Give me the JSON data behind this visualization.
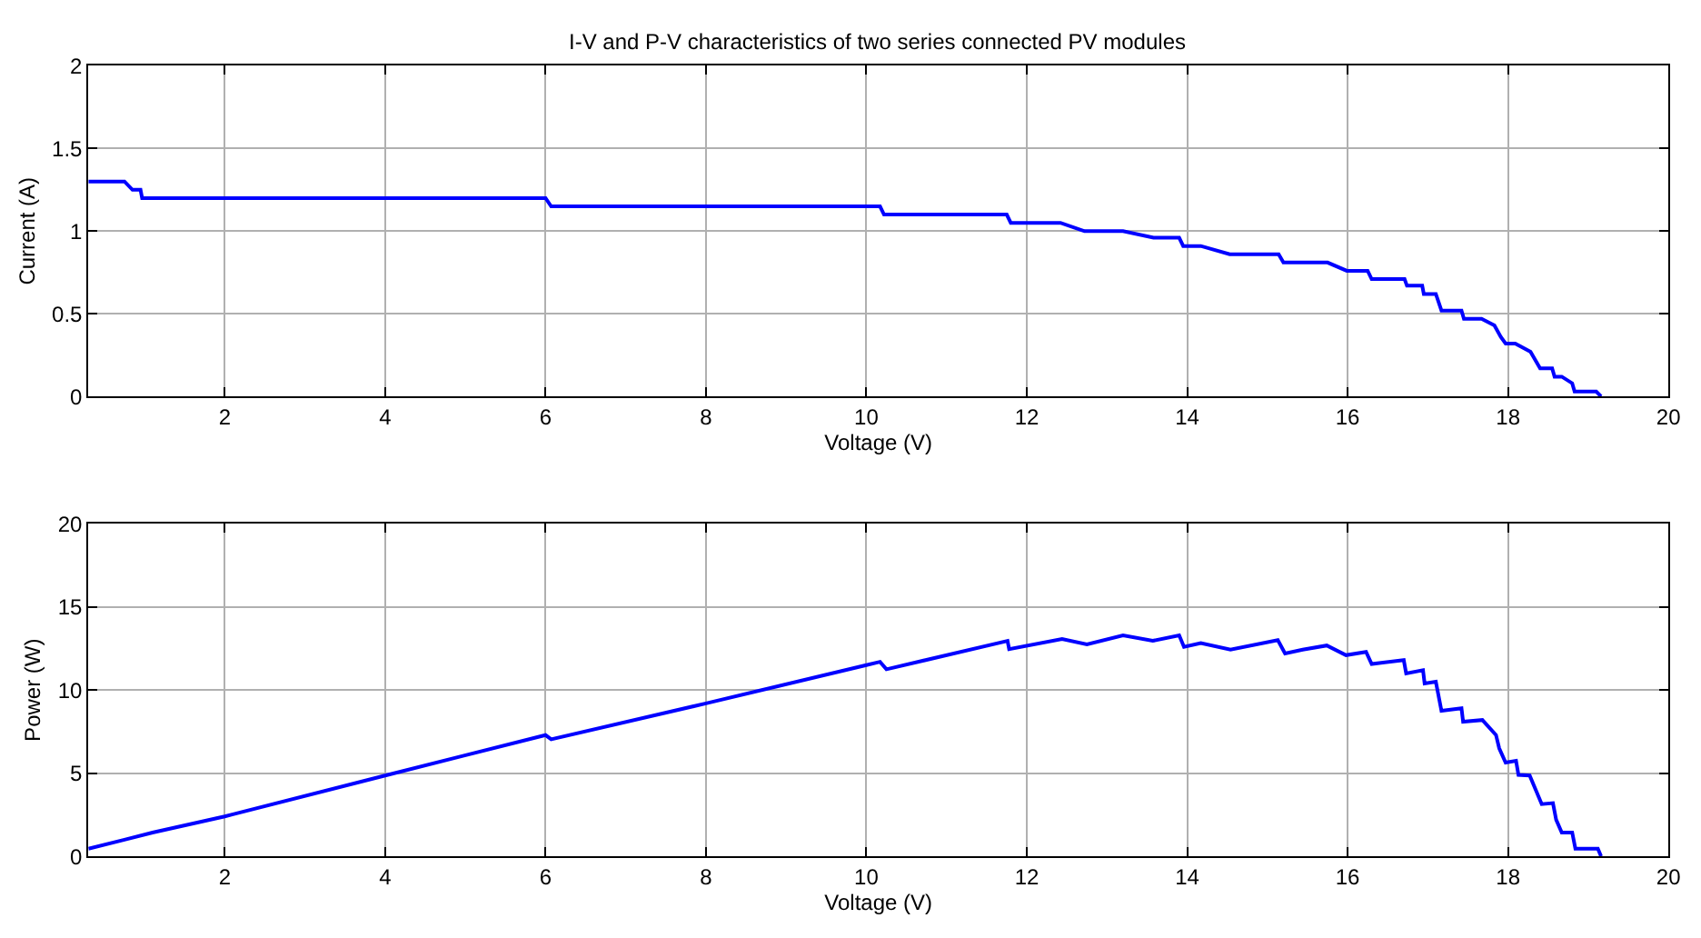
{
  "chart_data": [
    {
      "type": "line",
      "title": "I-V and P-V characteristics of two series connected PV modules",
      "xlabel": "Voltage (V)",
      "ylabel": "Current (A)",
      "xlim": [
        0.3,
        20
      ],
      "xticks": [
        2,
        4,
        6,
        8,
        10,
        12,
        14,
        16,
        18,
        20
      ],
      "ylim": [
        0,
        2
      ],
      "yticks": [
        0,
        0.5,
        1,
        1.5,
        2
      ],
      "grid": true,
      "series": [
        {
          "color": "#0000ff",
          "x": [
            0.3,
            0.75,
            0.85,
            0.95,
            0.97,
            6.0,
            6.07,
            10.17,
            10.22,
            11.75,
            11.8,
            12.42,
            12.72,
            13.2,
            13.58,
            13.9,
            13.95,
            14.17,
            14.53,
            15.14,
            15.2,
            15.75,
            15.99,
            16.25,
            16.3,
            16.71,
            16.74,
            16.93,
            16.95,
            17.1,
            17.17,
            17.42,
            17.45,
            17.67,
            17.83,
            17.91,
            17.97,
            18.09,
            18.28,
            18.4,
            18.55,
            18.58,
            18.67,
            18.8,
            18.83,
            19.1,
            19.16
          ],
          "values": [
            1.3,
            1.3,
            1.25,
            1.25,
            1.2,
            1.2,
            1.15,
            1.15,
            1.1,
            1.1,
            1.05,
            1.05,
            1.0,
            1.0,
            0.96,
            0.96,
            0.91,
            0.91,
            0.86,
            0.86,
            0.81,
            0.81,
            0.76,
            0.76,
            0.71,
            0.71,
            0.67,
            0.67,
            0.62,
            0.62,
            0.52,
            0.52,
            0.47,
            0.47,
            0.43,
            0.36,
            0.32,
            0.32,
            0.27,
            0.17,
            0.17,
            0.12,
            0.12,
            0.08,
            0.03,
            0.03,
            0.0
          ]
        }
      ]
    },
    {
      "type": "line",
      "xlabel": "Voltage (V)",
      "ylabel": "Power (W)",
      "xlim": [
        0.3,
        20
      ],
      "xticks": [
        2,
        4,
        6,
        8,
        10,
        12,
        14,
        16,
        18,
        20
      ],
      "ylim": [
        0,
        20
      ],
      "yticks": [
        0,
        5,
        10,
        15,
        20
      ],
      "grid": true,
      "series": [
        {
          "color": "#0000ff",
          "x": [
            0.3,
            0.75,
            1.1,
            2.0,
            4.0,
            6.0,
            6.07,
            8.0,
            10.0,
            10.17,
            10.25,
            11.76,
            11.78,
            12.44,
            12.75,
            13.2,
            13.57,
            13.9,
            13.96,
            14.17,
            14.54,
            15.13,
            15.22,
            15.44,
            15.74,
            15.98,
            16.23,
            16.3,
            16.7,
            16.73,
            16.94,
            16.96,
            17.1,
            17.17,
            17.42,
            17.44,
            17.68,
            17.85,
            17.89,
            17.97,
            18.1,
            18.13,
            18.27,
            18.42,
            18.56,
            18.6,
            18.67,
            18.8,
            18.84,
            19.12,
            19.16
          ],
          "values": [
            0.46,
            1.0,
            1.43,
            2.4,
            4.86,
            7.29,
            7.04,
            9.2,
            11.5,
            11.7,
            11.25,
            12.96,
            12.46,
            13.07,
            12.75,
            13.29,
            12.96,
            13.29,
            12.6,
            12.82,
            12.43,
            13.0,
            12.2,
            12.43,
            12.68,
            12.1,
            12.3,
            11.57,
            11.8,
            11.0,
            11.2,
            10.4,
            10.5,
            8.75,
            8.9,
            8.1,
            8.2,
            7.3,
            6.5,
            5.64,
            5.75,
            4.9,
            4.86,
            3.14,
            3.2,
            2.2,
            1.43,
            1.43,
            0.46,
            0.46,
            0.0
          ]
        }
      ]
    }
  ]
}
